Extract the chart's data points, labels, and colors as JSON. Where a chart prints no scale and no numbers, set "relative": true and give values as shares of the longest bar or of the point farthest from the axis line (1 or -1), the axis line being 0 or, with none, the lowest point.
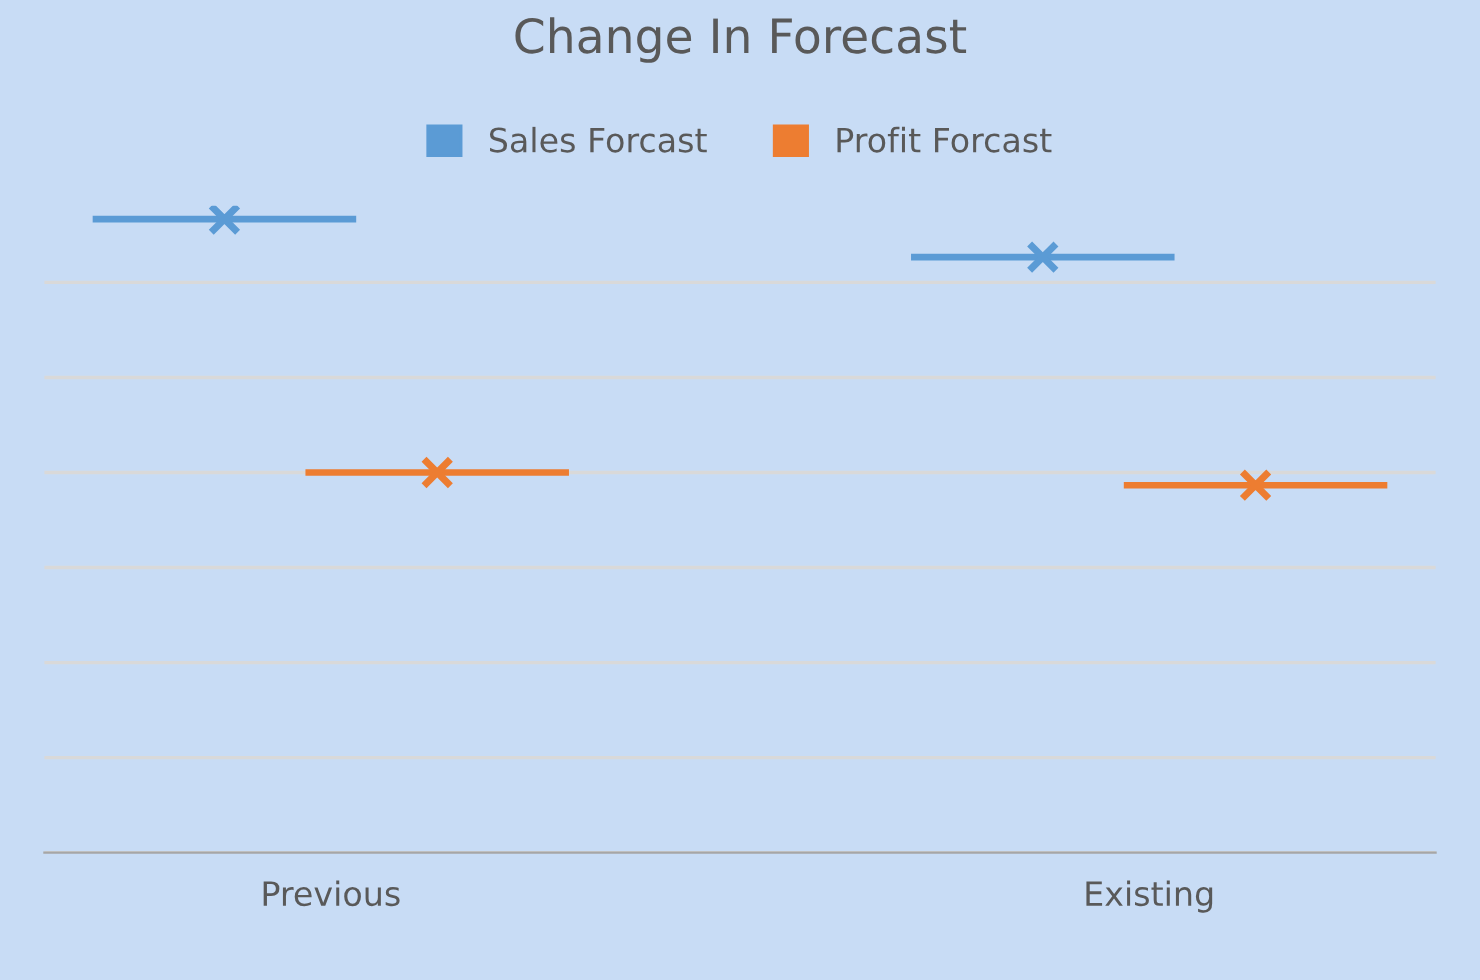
{
  "chart_data": {
    "type": "scatter",
    "title": "Change In Forecast",
    "categories": [
      "Previous",
      "Existing"
    ],
    "relative": true,
    "marker": "cross",
    "grid": true,
    "legend": "top",
    "series": [
      {
        "name": "Sales Forcast",
        "color": "#5b9bd5",
        "values": [
          1,
          0.94
        ]
      },
      {
        "name": "Profit Forcast",
        "color": "#ed7d31",
        "values": [
          0.6,
          0.58
        ]
      }
    ]
  }
}
